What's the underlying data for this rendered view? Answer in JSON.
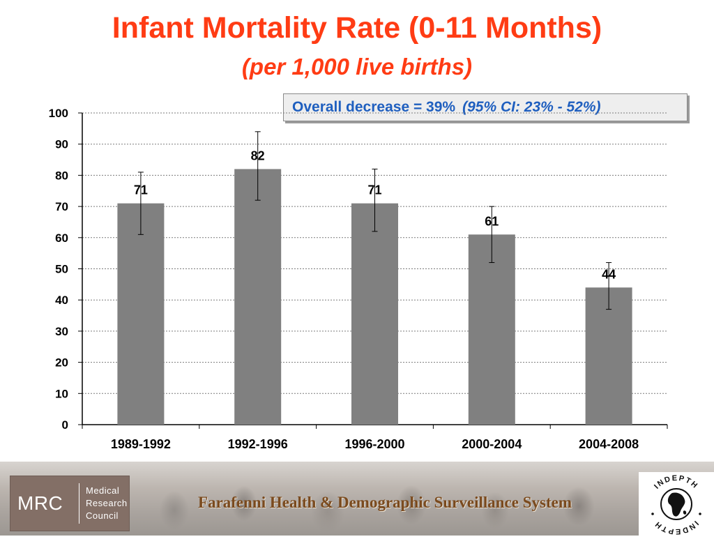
{
  "slide": {
    "title": "Infant Mortality Rate (0-11 Months)",
    "subtitle": "(per 1,000 live births)",
    "note": {
      "main": "Overall decrease = 39%",
      "ci": "(95% CI: 23% - 52%)",
      "text_color": "#1f5fbf"
    },
    "title_color": "#ff3c14"
  },
  "chart_data": {
    "type": "bar",
    "title": "Infant Mortality Rate (0-11 Months)",
    "subtitle": "(per 1,000 live births)",
    "xlabel": "",
    "ylabel": "",
    "categories": [
      "1989-1992",
      "1992-1996",
      "1996-2000",
      "2000-2004",
      "2004-2008"
    ],
    "series": [
      {
        "values": [
          71,
          82,
          71,
          61,
          44
        ],
        "error_low": [
          61,
          72,
          62,
          52,
          37
        ],
        "error_high": [
          81,
          94,
          82,
          70,
          52
        ],
        "color": "#808080"
      }
    ],
    "data_labels": [
      "71",
      "82",
      "71",
      "61",
      "44"
    ],
    "ylim": [
      0,
      100
    ],
    "yticks": [
      0,
      10,
      20,
      30,
      40,
      50,
      60,
      70,
      80,
      90,
      100
    ],
    "grid": true,
    "legend": "none"
  },
  "footer": {
    "org_abbr": "MRC",
    "org_lines": [
      "Medical",
      "Research",
      "Council"
    ],
    "system_name": "Farafenni Health & Demographic Surveillance System",
    "partner_logo_text_top": "INDEPTH",
    "partner_logo_text_bottom": "INDEPTH",
    "logo_bg_color": "#836f66"
  }
}
